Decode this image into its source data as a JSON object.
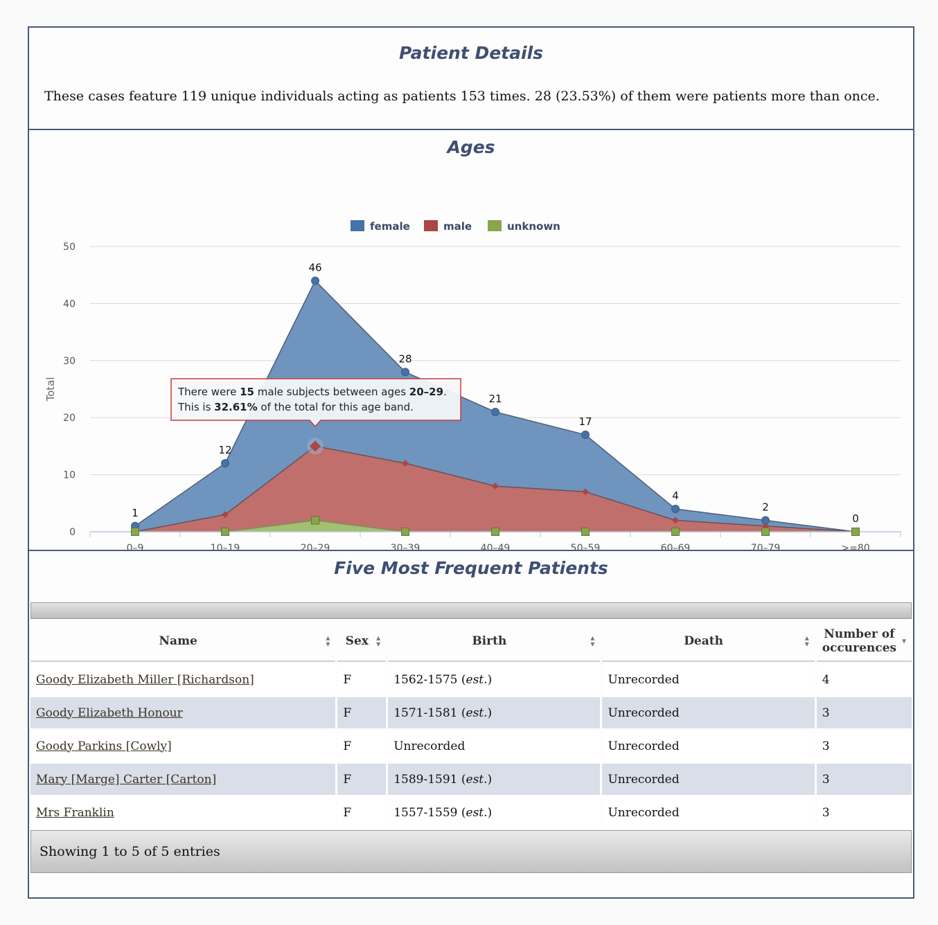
{
  "details": {
    "title": "Patient Details",
    "text": "These cases feature 119 unique individuals acting as patients 153 times. 28 (23.53%) of them were patients more than once."
  },
  "ages": {
    "title": "Ages",
    "tooltip": {
      "line1_a": "There were ",
      "line1_b": "15",
      "line1_c": " male subjects between ages ",
      "line1_d": "20–29",
      "line1_e": ".",
      "line2_a": "This is ",
      "line2_b": "32.61%",
      "line2_c": " of the total for this age band."
    }
  },
  "chart_data": {
    "type": "area",
    "stacked": true,
    "categories": [
      "0–9",
      "10–19",
      "20–29",
      "30–39",
      "40–49",
      "50–59",
      "60–69",
      "70–79",
      ">=80"
    ],
    "series": [
      {
        "name": "female",
        "color": "#4572a7",
        "values": [
          1,
          9,
          29,
          16,
          13,
          10,
          2,
          1,
          0
        ]
      },
      {
        "name": "male",
        "color": "#aa4643",
        "values": [
          0,
          3,
          15,
          12,
          8,
          7,
          2,
          1,
          0
        ]
      },
      {
        "name": "unknown",
        "color": "#89a54e",
        "values": [
          0,
          0,
          2,
          0,
          0,
          0,
          0,
          0,
          0
        ]
      }
    ],
    "totals": [
      1,
      12,
      46,
      28,
      21,
      17,
      4,
      2,
      0
    ],
    "ylabel": "Total",
    "ylim": [
      0,
      50
    ],
    "yticks": [
      0,
      10,
      20,
      30,
      40,
      50
    ],
    "legend": "top-center",
    "grid": true
  },
  "frequent": {
    "title": "Five Most Frequent Patients",
    "columns": [
      "Name",
      "Sex",
      "Birth",
      "Death",
      "Number of occurences"
    ],
    "rows": [
      {
        "name": "Goody Elizabeth Miller [Richardson]",
        "sex": "F",
        "birth": "1562-1575",
        "birth_note": "est.",
        "death": "Unrecorded",
        "count": "4"
      },
      {
        "name": "Goody Elizabeth Honour",
        "sex": "F",
        "birth": "1571-1581",
        "birth_note": "est.",
        "death": "Unrecorded",
        "count": "3"
      },
      {
        "name": "Goody Parkins [Cowly]",
        "sex": "F",
        "birth": "Unrecorded",
        "birth_note": "",
        "death": "Unrecorded",
        "count": "3"
      },
      {
        "name": "Mary [Marge] Carter [Carton]",
        "sex": "F",
        "birth": "1589-1591",
        "birth_note": "est.",
        "death": "Unrecorded",
        "count": "3"
      },
      {
        "name": "Mrs Franklin",
        "sex": "F",
        "birth": "1557-1559",
        "birth_note": "est.",
        "death": "Unrecorded",
        "count": "3"
      }
    ],
    "footer": "Showing 1 to 5 of 5 entries"
  }
}
